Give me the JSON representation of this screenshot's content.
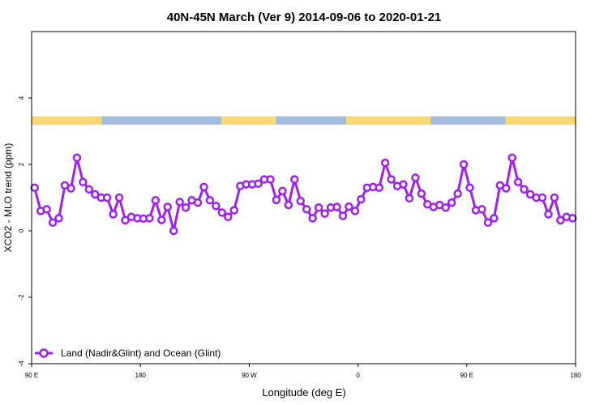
{
  "colors": {
    "series": "#A020F0",
    "land": "#FADA70",
    "ocean": "#A4BCDC",
    "axis": "#000000"
  },
  "chart_data": {
    "type": "line",
    "title": "40N-45N March (Ver 9)   2014-09-06 to 2020-01-21",
    "xlabel": "Longitude (deg E)",
    "ylabel": "XCO2 - MLO trend (ppm)",
    "xlim": [
      90,
      540
    ],
    "ylim": [
      -4,
      6
    ],
    "x_ticks": [
      {
        "value": 90,
        "label": "90 E"
      },
      {
        "value": 180,
        "label": "180"
      },
      {
        "value": 270,
        "label": "90 W"
      },
      {
        "value": 360,
        "label": "0"
      },
      {
        "value": 450,
        "label": "90 E"
      },
      {
        "value": 540,
        "label": "180"
      }
    ],
    "y_ticks": [
      {
        "value": -4,
        "label": "-4"
      },
      {
        "value": -2,
        "label": "-2"
      },
      {
        "value": 0,
        "label": "0"
      },
      {
        "value": 2,
        "label": "2"
      },
      {
        "value": 4,
        "label": "4"
      }
    ],
    "legend_position": "bottom-left",
    "surface_band": {
      "y_range": [
        3.2,
        3.45
      ],
      "land_segments": [
        [
          90,
          148
        ],
        [
          247,
          292
        ],
        [
          350,
          420
        ],
        [
          482,
          540
        ]
      ]
    },
    "series": [
      {
        "name": "Land (Nadir&Glint) and Ocean (Glint)",
        "x": [
          92.5,
          97.5,
          102.5,
          107.5,
          112.5,
          117.5,
          122.5,
          127.5,
          132.5,
          137.5,
          142.5,
          147.5,
          152.5,
          157.5,
          162.5,
          167.5,
          172.5,
          177.5,
          182.5,
          187.5,
          192.5,
          197.5,
          202.5,
          207.5,
          212.5,
          217.5,
          222.5,
          227.5,
          232.5,
          237.5,
          242.5,
          247.5,
          252.5,
          257.5,
          262.5,
          267.5,
          272.5,
          277.5,
          282.5,
          287.5,
          292.5,
          297.5,
          302.5,
          307.5,
          312.5,
          317.5,
          322.5,
          327.5,
          332.5,
          337.5,
          342.5,
          347.5,
          352.5,
          357.5,
          362.5,
          367.5,
          372.5,
          377.5,
          382.5,
          387.5,
          392.5,
          397.5,
          402.5,
          407.5,
          412.5,
          417.5,
          422.5,
          427.5,
          432.5,
          437.5,
          442.5,
          447.5,
          452.5,
          457.5,
          462.5,
          467.5,
          472.5,
          477.5,
          482.5,
          487.5,
          492.5,
          497.5,
          502.5,
          507.5,
          512.5,
          517.5,
          522.5,
          527.5,
          532.5,
          537.5
        ],
        "values": [
          1.3,
          0.6,
          0.65,
          0.25,
          0.38,
          1.37,
          1.28,
          2.2,
          1.47,
          1.25,
          1.1,
          1.0,
          1.0,
          0.5,
          1.0,
          0.32,
          0.42,
          0.38,
          0.37,
          0.38,
          0.92,
          0.33,
          0.72,
          0.0,
          0.87,
          0.7,
          0.92,
          0.85,
          1.32,
          0.92,
          0.75,
          0.55,
          0.42,
          0.62,
          1.35,
          1.4,
          1.4,
          1.42,
          1.55,
          1.55,
          0.93,
          1.2,
          0.78,
          1.55,
          0.9,
          0.65,
          0.38,
          0.7,
          0.52,
          0.7,
          0.72,
          0.45,
          0.73,
          0.6,
          0.95,
          1.3,
          1.32,
          1.3,
          2.05,
          1.55,
          1.35,
          1.4,
          0.98,
          1.6,
          1.12,
          0.8,
          0.72,
          0.78,
          0.7,
          0.85,
          1.12,
          2.0,
          1.3,
          0.62,
          0.65,
          0.25,
          0.38,
          1.37,
          1.28,
          2.2,
          1.47,
          1.25,
          1.1,
          1.0,
          1.0,
          0.5,
          1.0,
          0.32,
          0.42,
          0.38
        ]
      }
    ]
  }
}
